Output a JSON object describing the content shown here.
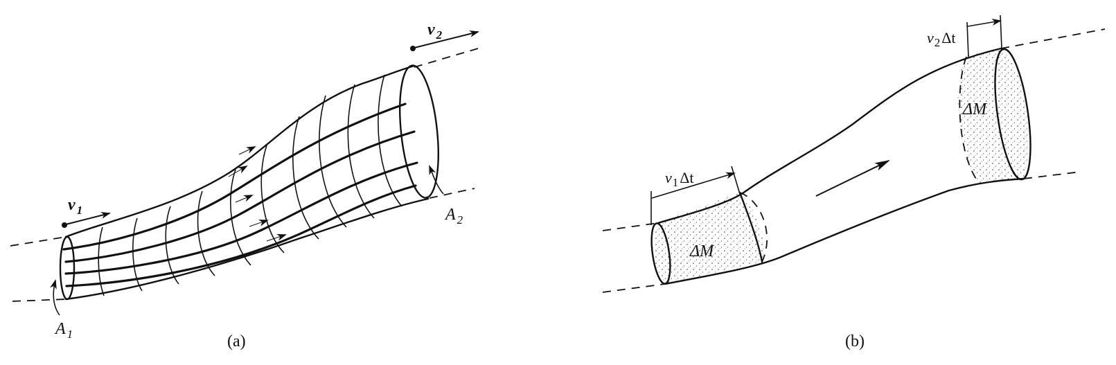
{
  "panel_a": {
    "caption": "(a)",
    "v1": {
      "letter": "v",
      "sub": "1"
    },
    "v2": {
      "letter": "v",
      "sub": "2"
    },
    "A1": {
      "letter": "A",
      "sub": "1"
    },
    "A2": {
      "letter": "A",
      "sub": "2"
    }
  },
  "panel_b": {
    "caption": "(b)",
    "v1dt": {
      "letter": "v",
      "sub": "1",
      "rest": "Δt"
    },
    "v2dt": {
      "letter": "v",
      "sub": "2",
      "rest": "Δt"
    },
    "dm_left": "ΔM",
    "dm_right": "ΔM"
  }
}
